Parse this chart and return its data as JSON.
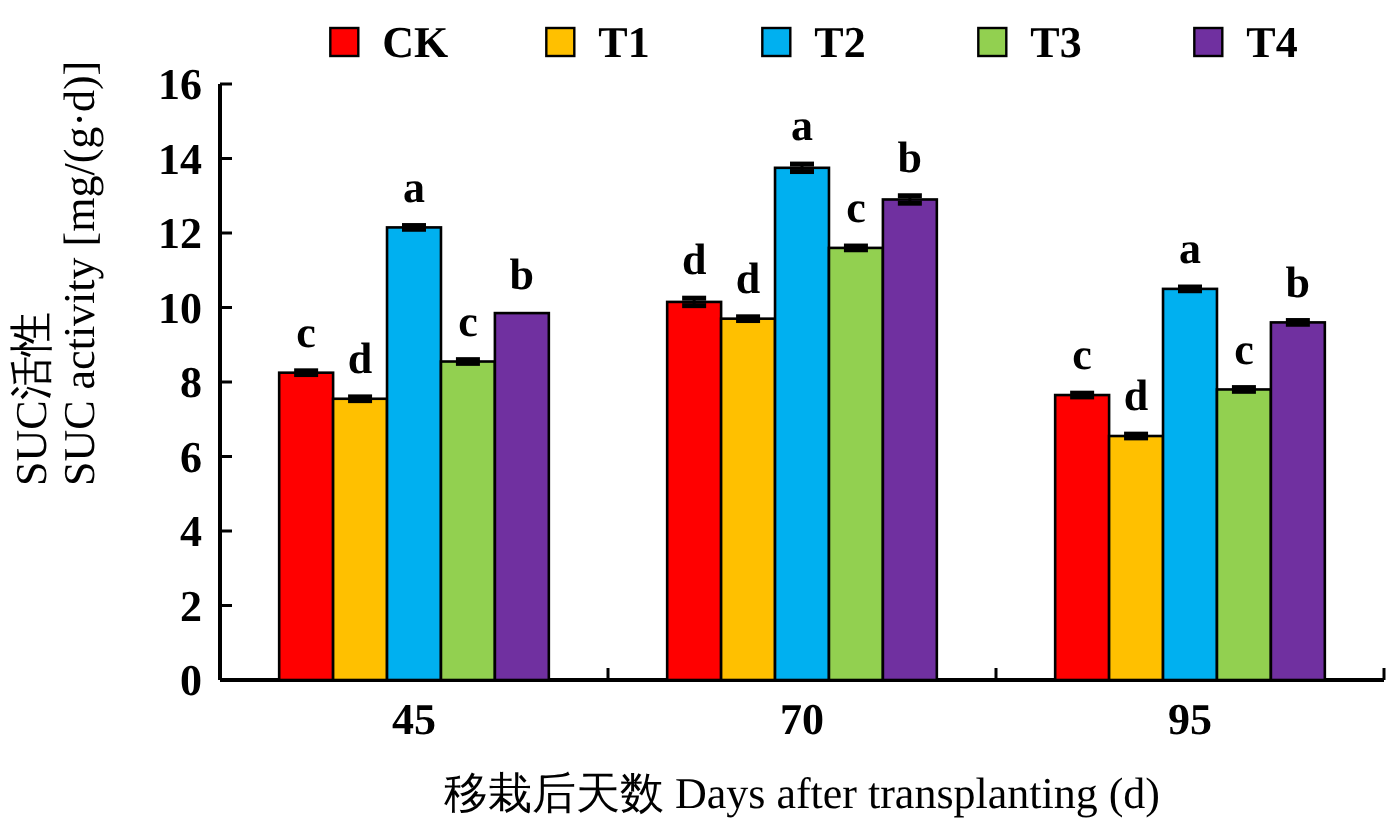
{
  "chart_data": {
    "type": "bar",
    "categories": [
      "45",
      "70",
      "95"
    ],
    "series": [
      {
        "name": "CK",
        "color": "#ff0000",
        "values": [
          8.25,
          10.15,
          7.65
        ],
        "errors": [
          0.05,
          0.1,
          0.05
        ],
        "value_labels": [
          "c",
          "d",
          "c"
        ]
      },
      {
        "name": "T1",
        "color": "#ffc000",
        "values": [
          7.55,
          9.7,
          6.55
        ],
        "errors": [
          0.05,
          0.05,
          0.05
        ],
        "value_labels": [
          "d",
          "d",
          "d"
        ]
      },
      {
        "name": "T2",
        "color": "#00b0f0",
        "values": [
          12.15,
          13.75,
          10.5
        ],
        "errors": [
          0.05,
          0.1,
          0.05
        ],
        "value_labels": [
          "a",
          "a",
          "a"
        ]
      },
      {
        "name": "T3",
        "color": "#92d050",
        "values": [
          8.55,
          11.6,
          7.8
        ],
        "errors": [
          0.05,
          0.05,
          0.05
        ],
        "value_labels": [
          "c",
          "c",
          "c"
        ]
      },
      {
        "name": "T4",
        "color": "#7030a0",
        "values": [
          9.85,
          12.9,
          9.6
        ],
        "errors": [
          null,
          0.1,
          0.05
        ],
        "value_labels": [
          "b",
          "b",
          "b"
        ]
      }
    ],
    "xlabel": "移栽后天数 Days after transplanting (d)",
    "ylabel": "SUC活性\nSUC activity [mg/(g·d)]",
    "ylim": [
      0,
      16
    ],
    "yticks": [
      0,
      2,
      4,
      6,
      8,
      10,
      12,
      14,
      16
    ],
    "legend": "top"
  }
}
